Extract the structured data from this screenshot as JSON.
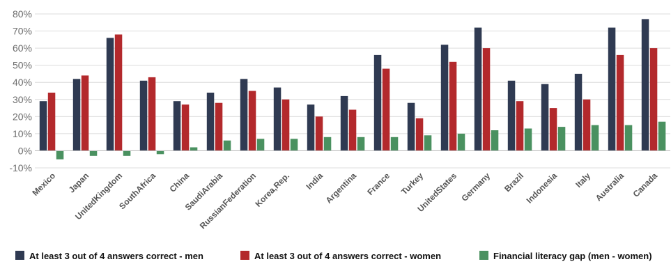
{
  "chart_data": {
    "type": "bar",
    "categories": [
      "Mexico",
      "Japan",
      "UnitedKingdom",
      "SouthAfrica",
      "China",
      "SaudiArabia",
      "RussianFederation",
      "Korea,Rep.",
      "India",
      "Argentina",
      "France",
      "Turkey",
      "UnitedStates",
      "Germany",
      "Brazil",
      "Indonesia",
      "Italy",
      "Australia",
      "Canada"
    ],
    "series": [
      {
        "name": "At least 3 out of 4 answers correct - men",
        "color": "#2f3a52",
        "values": [
          29,
          42,
          66,
          41,
          29,
          34,
          42,
          37,
          27,
          32,
          56,
          28,
          62,
          72,
          41,
          39,
          45,
          72,
          77
        ]
      },
      {
        "name": "At least 3 out of 4 answers correct - women",
        "color": "#b3292c",
        "values": [
          34,
          44,
          68,
          43,
          27,
          28,
          35,
          30,
          20,
          24,
          48,
          19,
          52,
          60,
          29,
          25,
          30,
          56,
          60
        ]
      },
      {
        "name": "Financial literacy gap (men - women)",
        "color": "#4a9160",
        "values": [
          -5,
          -3,
          -3,
          -2,
          2,
          6,
          7,
          7,
          8,
          8,
          8,
          9,
          10,
          12,
          13,
          14,
          15,
          15,
          17
        ]
      }
    ],
    "yticks": [
      "-10%",
      "0%",
      "10%",
      "20%",
      "30%",
      "40%",
      "50%",
      "60%",
      "70%",
      "80%"
    ],
    "ylim": [
      -10,
      80
    ],
    "grid": true,
    "legend_position": "bottom"
  }
}
